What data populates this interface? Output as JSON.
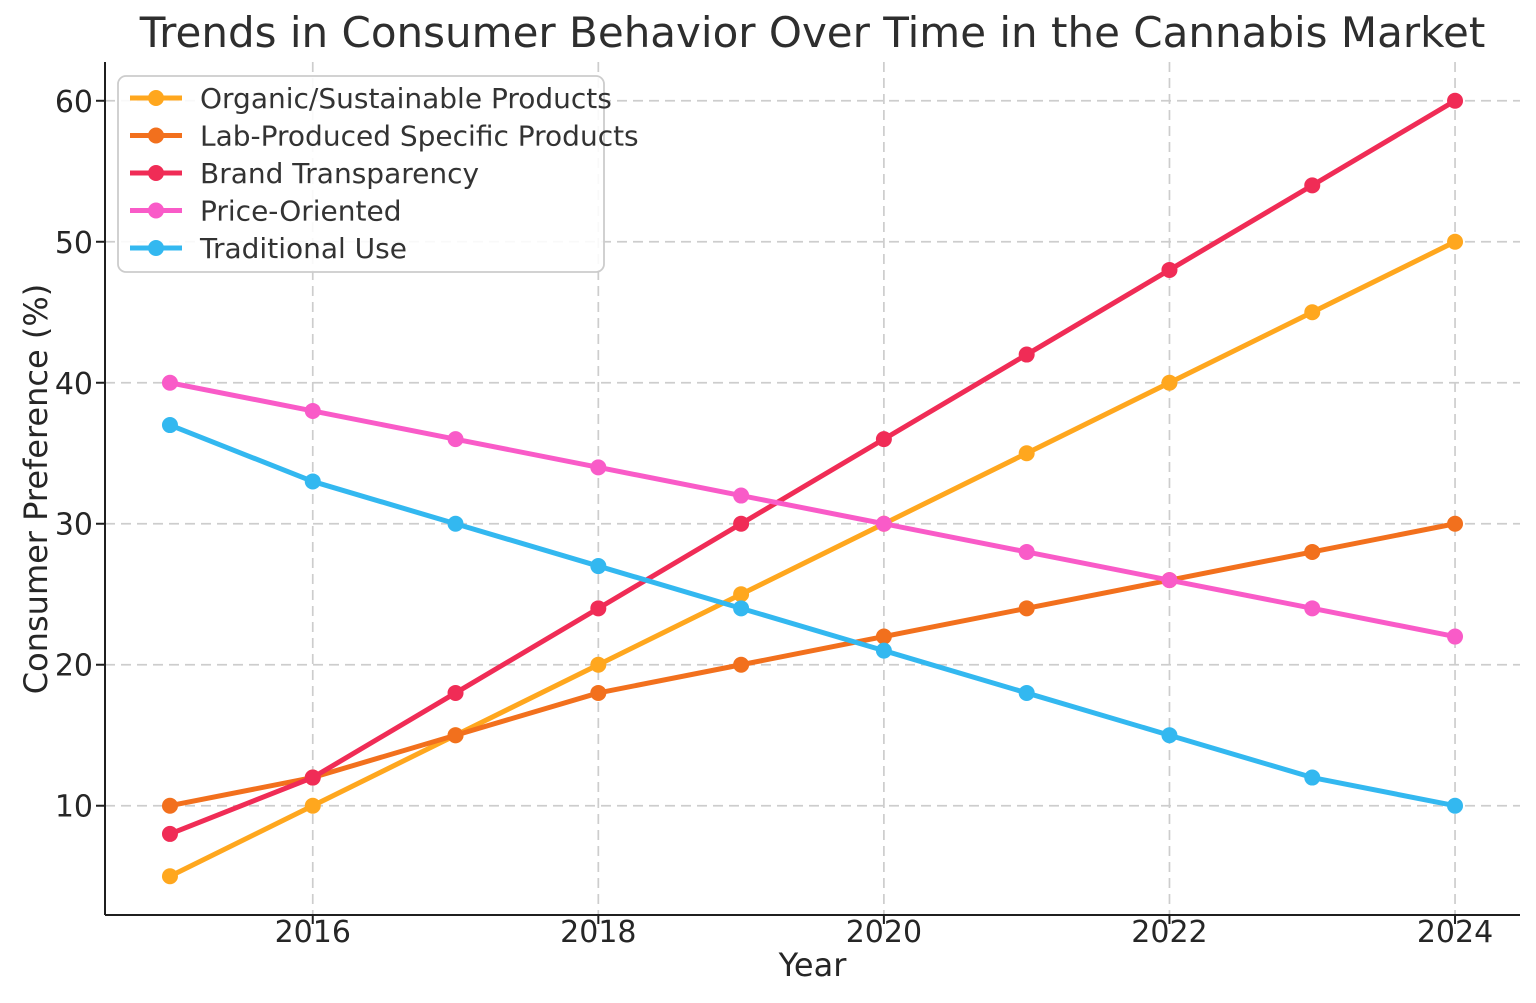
{
  "chart_data": {
    "type": "line",
    "title": "Trends in Consumer Behavior Over Time in the Cannabis Market",
    "xlabel": "Year",
    "ylabel": "Consumer Preference (%)",
    "x": [
      2015,
      2016,
      2017,
      2018,
      2019,
      2020,
      2021,
      2022,
      2023,
      2024
    ],
    "series": [
      {
        "name": "Organic/Sustainable Products",
        "color": "#FFA71E",
        "values": [
          5,
          10,
          15,
          20,
          25,
          30,
          35,
          40,
          45,
          50
        ]
      },
      {
        "name": "Lab-Produced Specific Products",
        "color": "#F2701D",
        "values": [
          10,
          12,
          15,
          18,
          20,
          22,
          24,
          26,
          28,
          30
        ]
      },
      {
        "name": "Brand Transparency",
        "color": "#F02C56",
        "values": [
          8,
          12,
          18,
          24,
          30,
          36,
          42,
          48,
          54,
          60
        ]
      },
      {
        "name": "Price-Oriented",
        "color": "#F95BC8",
        "values": [
          40,
          38,
          36,
          34,
          32,
          30,
          28,
          26,
          24,
          22
        ]
      },
      {
        "name": "Traditional Use",
        "color": "#33B8F0",
        "values": [
          37,
          33,
          30,
          27,
          24,
          21,
          18,
          15,
          12,
          10
        ]
      }
    ],
    "xticks": [
      2016,
      2018,
      2020,
      2022,
      2024
    ],
    "yticks": [
      10,
      20,
      30,
      40,
      50,
      60
    ],
    "xlim": [
      2014.545,
      2024.455
    ],
    "ylim": [
      2.25,
      62.75
    ],
    "grid": true,
    "legend_position": "upper left"
  },
  "style": {
    "background": "#ffffff",
    "text_color": "#2e2e2e",
    "tick_color": "#262626",
    "grid_color": "#cdcdcd",
    "spine_color": "#1f1f1f",
    "legend_border_color": "#cccccc",
    "legend_text_color": "#333333"
  }
}
